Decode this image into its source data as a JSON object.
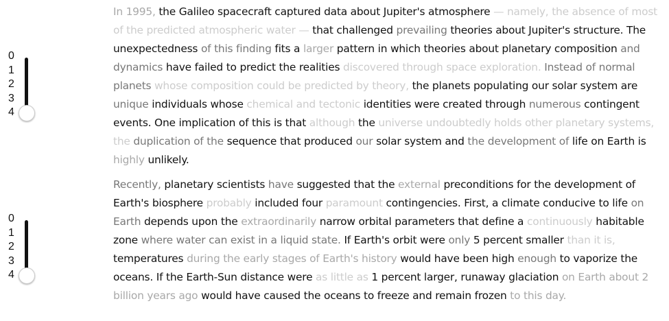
{
  "colors": [
    "#111111",
    "#777777",
    "#a8a8a8",
    "#cccccc"
  ],
  "paragraphs": [
    {
      "slider": {
        "labels": [
          "0",
          "1",
          "2",
          "3",
          "4"
        ],
        "value": 4
      },
      "segments": [
        {
          "text": "In 1995,",
          "shade": 2
        },
        {
          "text": " the Galileo spacecraft captured data about Jupiter's atmosphere ",
          "shade": 0
        },
        {
          "text": "— namely, the absence of most of the predicted atmospheric water —",
          "shade": 3
        },
        {
          "text": " that challenged ",
          "shade": 0
        },
        {
          "text": "prevailing",
          "shade": 1
        },
        {
          "text": " theories about Jupiter's structure. The unexpectedness ",
          "shade": 0
        },
        {
          "text": "of this finding",
          "shade": 1
        },
        {
          "text": " fits a ",
          "shade": 0
        },
        {
          "text": "larger",
          "shade": 2
        },
        {
          "text": " pattern in which theories about planetary composition ",
          "shade": 0
        },
        {
          "text": "and dynamics",
          "shade": 1
        },
        {
          "text": " have failed to predict the realities ",
          "shade": 0
        },
        {
          "text": "discovered through space exploration.",
          "shade": 3
        },
        {
          "text": " Instead of normal planets ",
          "shade": 1
        },
        {
          "text": "whose composition could be predicted by theory,",
          "shade": 3
        },
        {
          "text": " the planets populating our solar system are ",
          "shade": 0
        },
        {
          "text": "unique",
          "shade": 1
        },
        {
          "text": " individuals whose ",
          "shade": 0
        },
        {
          "text": "chemical and tectonic",
          "shade": 3
        },
        {
          "text": " identities were created through ",
          "shade": 0
        },
        {
          "text": "numerous",
          "shade": 1
        },
        {
          "text": " contingent events. One implication of this is that ",
          "shade": 0
        },
        {
          "text": "although",
          "shade": 3
        },
        {
          "text": " the ",
          "shade": 0
        },
        {
          "text": "universe undoubtedly holds other planetary systems, the",
          "shade": 3
        },
        {
          "text": " duplication of the",
          "shade": 1
        },
        {
          "text": " sequence that produced ",
          "shade": 0
        },
        {
          "text": "our",
          "shade": 1
        },
        {
          "text": " solar system and ",
          "shade": 0
        },
        {
          "text": "the development of",
          "shade": 1
        },
        {
          "text": " life on Earth is ",
          "shade": 0
        },
        {
          "text": "highly",
          "shade": 2
        },
        {
          "text": " unlikely.",
          "shade": 0
        }
      ]
    },
    {
      "slider": {
        "labels": [
          "0",
          "1",
          "2",
          "3",
          "4"
        ],
        "value": 4
      },
      "segments": [
        {
          "text": "Recently,",
          "shade": 1
        },
        {
          "text": " planetary scientists ",
          "shade": 0
        },
        {
          "text": "have",
          "shade": 1
        },
        {
          "text": " suggested that the ",
          "shade": 0
        },
        {
          "text": "external",
          "shade": 2
        },
        {
          "text": " preconditions for the development of Earth's biosphere ",
          "shade": 0
        },
        {
          "text": "probably",
          "shade": 3
        },
        {
          "text": " included four ",
          "shade": 0
        },
        {
          "text": "paramount",
          "shade": 3
        },
        {
          "text": " contingencies. First, a climate conducive to life ",
          "shade": 0
        },
        {
          "text": "on Earth",
          "shade": 1
        },
        {
          "text": " depends upon the ",
          "shade": 0
        },
        {
          "text": "extraordinarily",
          "shade": 2
        },
        {
          "text": " narrow orbital parameters that define a ",
          "shade": 0
        },
        {
          "text": "continuously",
          "shade": 3
        },
        {
          "text": " habitable zone ",
          "shade": 0
        },
        {
          "text": "where water can exist in a liquid state.",
          "shade": 1
        },
        {
          "text": " If Earth's orbit were ",
          "shade": 0
        },
        {
          "text": "only",
          "shade": 1
        },
        {
          "text": " 5 percent smaller ",
          "shade": 0
        },
        {
          "text": "than it is,",
          "shade": 3
        },
        {
          "text": " temperatures ",
          "shade": 0
        },
        {
          "text": "during the early stages of Earth's history",
          "shade": 2
        },
        {
          "text": " would have been high ",
          "shade": 0
        },
        {
          "text": "enough",
          "shade": 1
        },
        {
          "text": " to vaporize the oceans. If the Earth-Sun distance were ",
          "shade": 0
        },
        {
          "text": "as little as",
          "shade": 3
        },
        {
          "text": " 1 percent larger, runaway glaciation ",
          "shade": 0
        },
        {
          "text": "on Earth about 2 billion years ago",
          "shade": 2
        },
        {
          "text": " would have caused the oceans to freeze and remain frozen ",
          "shade": 0
        },
        {
          "text": "to this day.",
          "shade": 2
        }
      ]
    }
  ]
}
